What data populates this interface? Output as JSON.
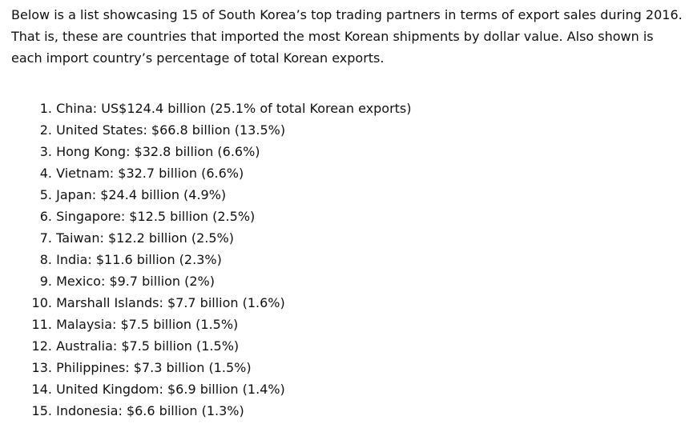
{
  "intro": {
    "text": "Below is a list showcasing 15 of South Korea’s top trading partners in terms of export sales during 2016. That is, these are countries that imported the most Korean shipments by dollar value. Also shown is each import country’s percentage of total Korean exports."
  },
  "list": [
    {
      "number": "1.",
      "text": "China: US$124.4 billion (25.1% of total Korean exports)"
    },
    {
      "number": "2.",
      "text": "United States: $66.8 billion (13.5%)"
    },
    {
      "number": "3.",
      "text": "Hong Kong: $32.8 billion (6.6%)"
    },
    {
      "number": "4.",
      "text": "Vietnam: $32.7 billion (6.6%)"
    },
    {
      "number": "5.",
      "text": "Japan: $24.4 billion (4.9%)"
    },
    {
      "number": "6.",
      "text": "Singapore: $12.5 billion (2.5%)"
    },
    {
      "number": "7.",
      "text": "Taiwan: $12.2 billion (2.5%)"
    },
    {
      "number": "8.",
      "text": "India: $11.6 billion (2.3%)"
    },
    {
      "number": "9.",
      "text": "Mexico: $9.7 billion (2%)"
    },
    {
      "number": "10.",
      "text": "Marshall Islands: $7.7 billion (1.6%)"
    },
    {
      "number": "11.",
      "text": "Malaysia: $7.5 billion (1.5%)"
    },
    {
      "number": "12.",
      "text": "Australia: $7.5 billion (1.5%)"
    },
    {
      "number": "13.",
      "text": "Philippines: $7.3 billion (1.5%)"
    },
    {
      "number": "14.",
      "text": "United Kingdom: $6.9 billion (1.4%)"
    },
    {
      "number": "15.",
      "text": "Indonesia: $6.6 billion (1.3%)"
    }
  ]
}
